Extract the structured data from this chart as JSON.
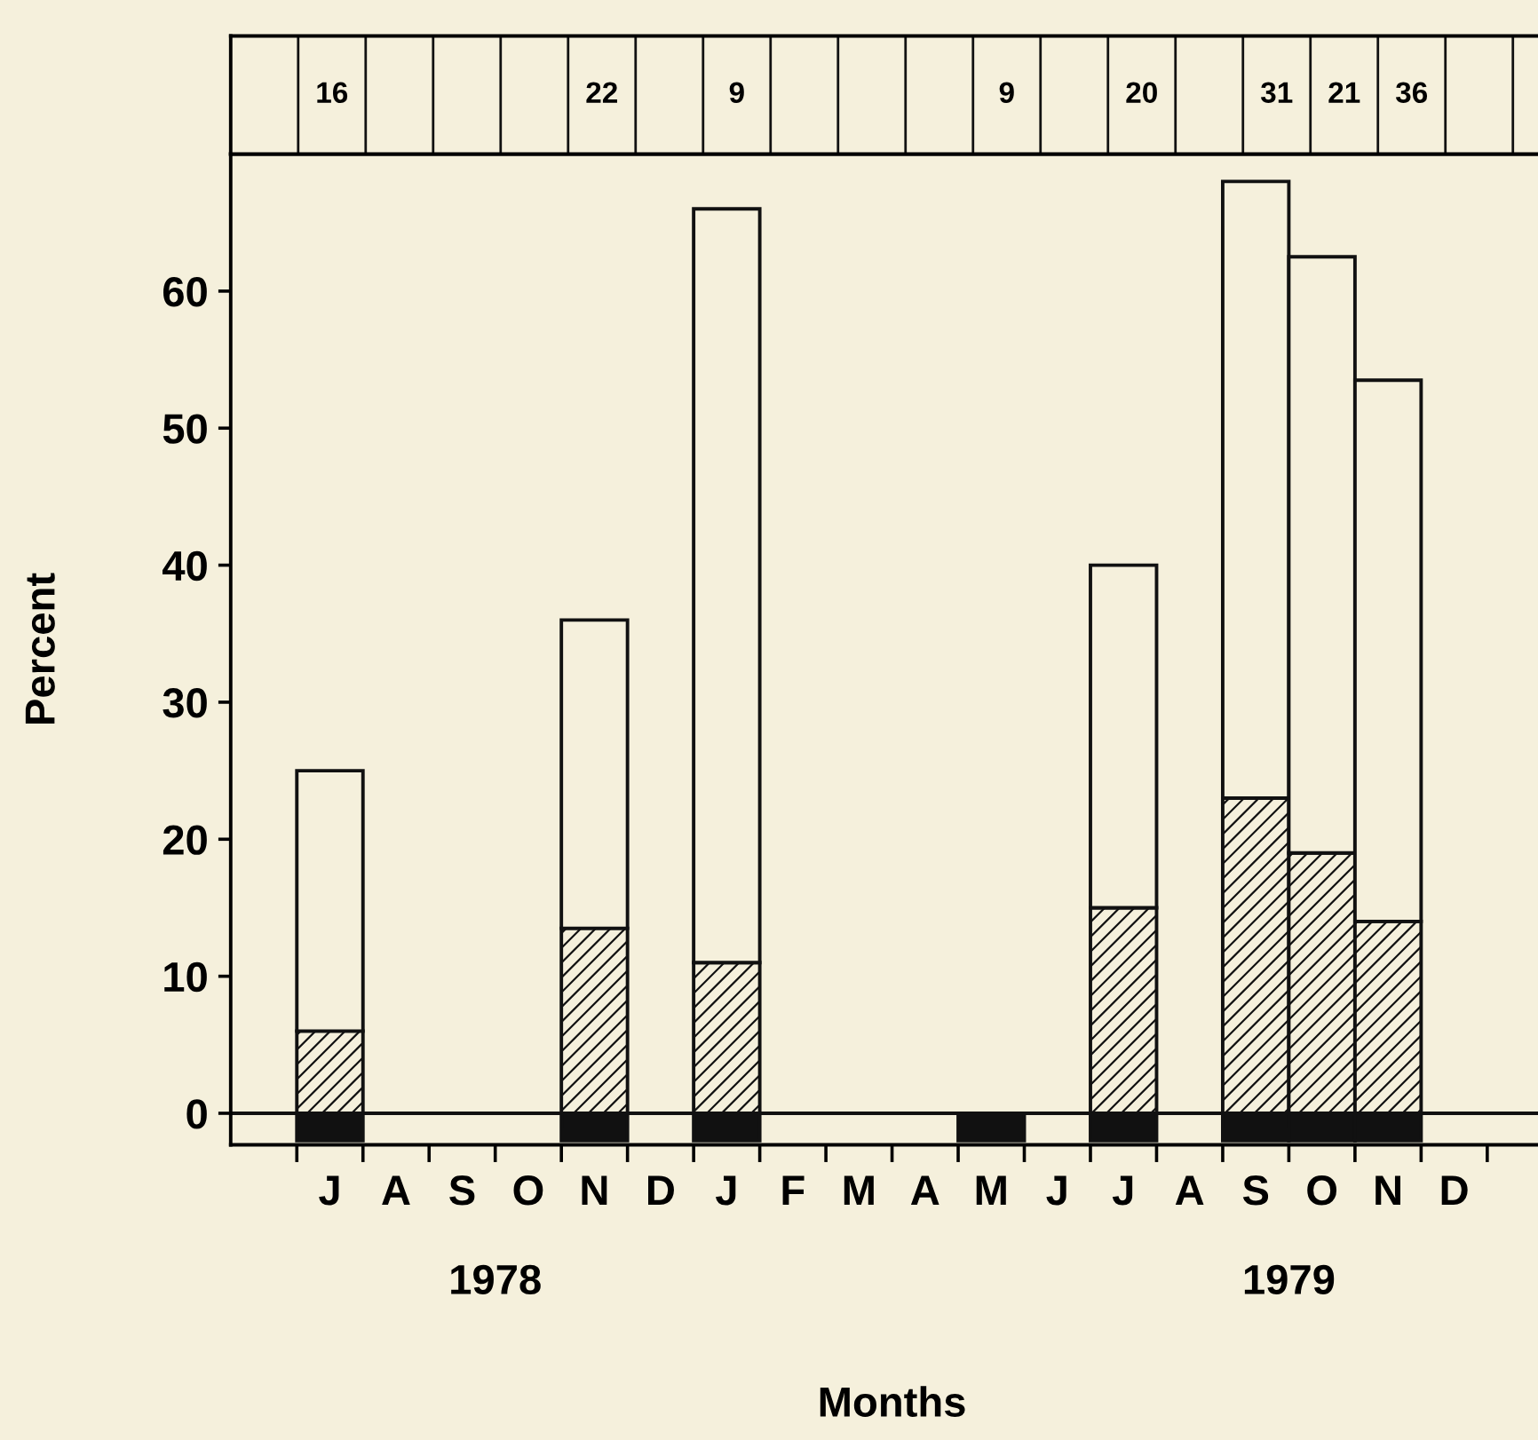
{
  "chart_data": {
    "type": "bar",
    "stacked": true,
    "categories": [
      "J",
      "A",
      "S",
      "O",
      "N",
      "D",
      "J",
      "F",
      "M",
      "A",
      "M",
      "J",
      "J",
      "A",
      "S",
      "O",
      "N",
      "D"
    ],
    "series": [
      {
        "color": "#111111",
        "values": [
          -2,
          null,
          null,
          null,
          -2,
          null,
          -2,
          null,
          null,
          null,
          -2,
          null,
          -2,
          null,
          -2,
          -2,
          -2,
          null
        ]
      },
      {
        "color": "#111111",
        "values": [
          6,
          null,
          null,
          null,
          13.5,
          null,
          11,
          null,
          null,
          null,
          null,
          null,
          15,
          null,
          23,
          19,
          14,
          null
        ]
      },
      {
        "color": "#f5f0dc",
        "values": [
          19,
          null,
          null,
          null,
          22.5,
          null,
          55,
          null,
          null,
          null,
          null,
          null,
          25,
          null,
          45,
          43.5,
          39.5,
          null
        ]
      }
    ],
    "ylabel": "Percent",
    "xlabel": "Months",
    "ylim": [
      -2.3,
      70
    ],
    "yticks": [
      0,
      10,
      20,
      30,
      40,
      50,
      60
    ],
    "ref_lines": [
      {
        "axis": "y",
        "value": 0,
        "color": "#111111"
      }
    ],
    "annotations": [
      "16",
      "22",
      "9",
      "9",
      "20",
      "31",
      "21",
      "36",
      "1978",
      "1979"
    ],
    "grid": false,
    "legend": false
  }
}
